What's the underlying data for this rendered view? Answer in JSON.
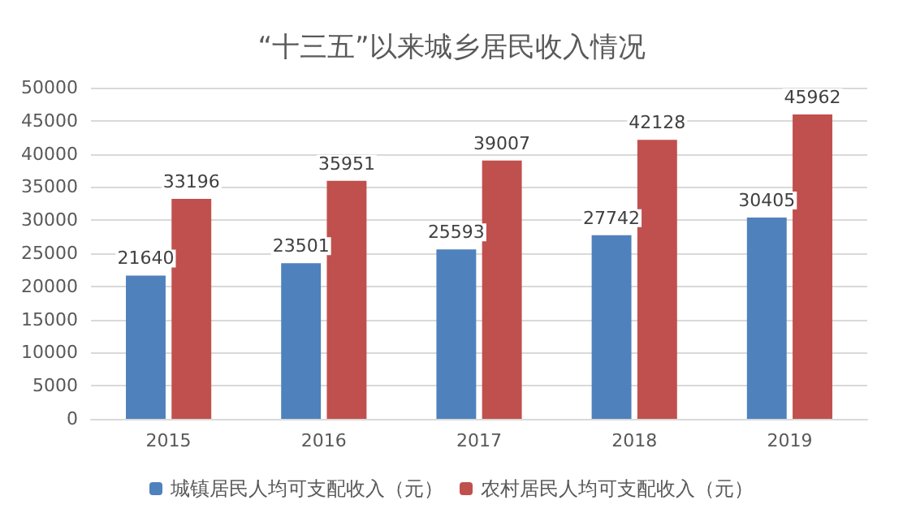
{
  "chart_data": {
    "type": "bar",
    "title": "“十三五”以来城乡居民收入情况",
    "categories": [
      "2015",
      "2016",
      "2017",
      "2018",
      "2019"
    ],
    "series": [
      {
        "name": "城镇居民人均可支配收入（元）",
        "color": "#4f81bd",
        "values": [
          21640,
          23501,
          25593,
          27742,
          30405
        ]
      },
      {
        "name": "农村居民人均可支配收入（元）",
        "color": "#c0504d",
        "values": [
          33196,
          35951,
          39007,
          42128,
          45962
        ]
      }
    ],
    "ylim": [
      0,
      50000
    ],
    "yticks": [
      0,
      5000,
      10000,
      15000,
      20000,
      25000,
      30000,
      35000,
      40000,
      45000,
      50000
    ],
    "grid": "y",
    "legend": "bottom",
    "data_labels": true
  }
}
